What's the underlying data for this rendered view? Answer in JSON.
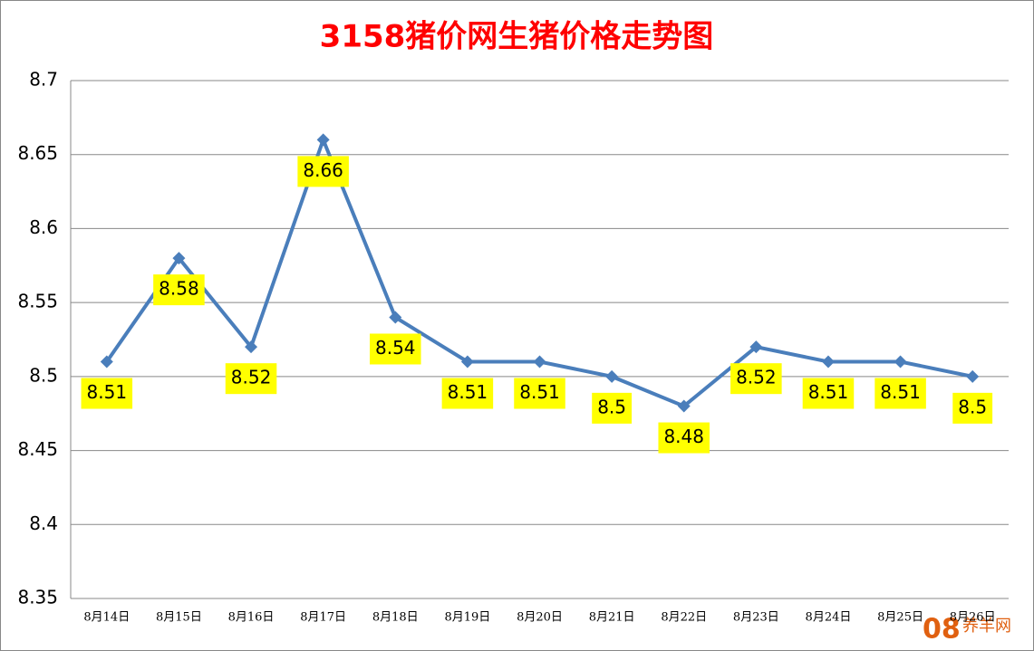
{
  "chart_data": {
    "type": "line",
    "title": "3158猪价网生猪价格走势图",
    "categories": [
      "8月14日",
      "8月15日",
      "8月16日",
      "8月17日",
      "8月18日",
      "8月19日",
      "8月20日",
      "8月21日",
      "8月22日",
      "8月23日",
      "8月24日",
      "8月25日",
      "8月26日"
    ],
    "values": [
      8.51,
      8.58,
      8.52,
      8.66,
      8.54,
      8.51,
      8.51,
      8.5,
      8.48,
      8.52,
      8.51,
      8.51,
      8.5
    ],
    "color": "#4a7ebb",
    "label_color": "#ffff00",
    "ylim": [
      8.35,
      8.7
    ],
    "yticks": [
      8.35,
      8.4,
      8.45,
      8.5,
      8.55,
      8.6,
      8.65,
      8.7
    ],
    "grid": true
  },
  "watermark": {
    "number": "08",
    "text": "养羊网"
  }
}
